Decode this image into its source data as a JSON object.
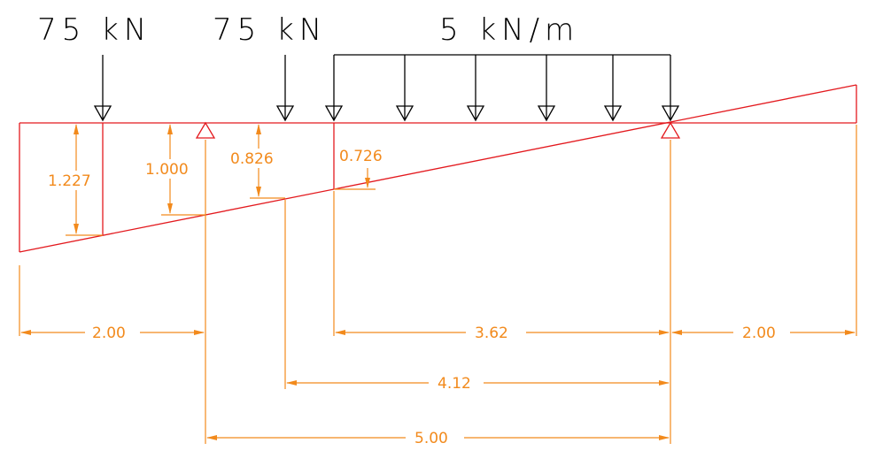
{
  "colors": {
    "influence_line": "#e3191e",
    "dimension": "#f28a1c",
    "load": "#000000",
    "background": "#ffffff"
  },
  "loads": {
    "point_load_1": "75 kN",
    "point_load_2": "75 kN",
    "distributed_load": "5 kN/m"
  },
  "ordinates": {
    "o1": "1.227",
    "o2": "1.000",
    "o3": "0.826",
    "o4": "0.726"
  },
  "dimensions": {
    "left_overhang": "2.00",
    "udl_length": "3.62",
    "right_overhang": "2.00",
    "load2_to_support": "4.12",
    "span": "5.00"
  }
}
